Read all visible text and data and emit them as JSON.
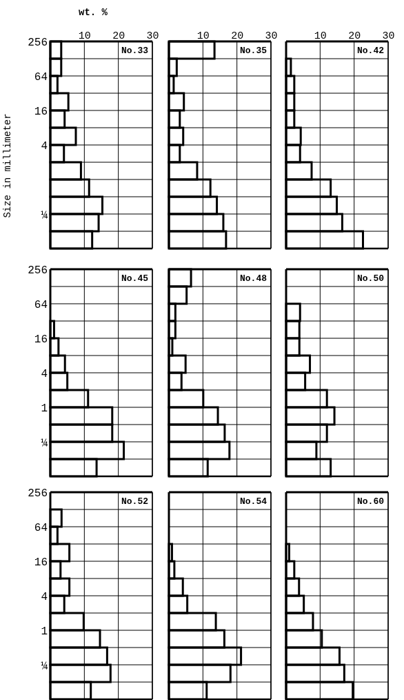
{
  "chart_data": [
    {
      "type": "histogram",
      "title": "No.33",
      "xlabel": "wt. %",
      "ylabel": "Size in millimeter",
      "orientation": "horizontal",
      "log": "y",
      "bins": [
        256,
        128,
        64,
        32,
        16,
        8,
        4,
        2,
        1,
        0.5,
        0.25,
        0.125,
        0.0625
      ],
      "values": [
        3.2,
        3.2,
        2.1,
        5.3,
        4.2,
        7.5,
        4.0,
        9.0,
        11.4,
        15.3,
        14.2,
        12.3
      ],
      "color": "#000000",
      "xlim": [
        0,
        30
      ],
      "xticks": [
        10,
        20,
        30
      ],
      "ylim": [
        0.0625,
        256
      ],
      "yticks": [
        256,
        {
          "value": 128,
          "label": null
        },
        64,
        {
          "value": 32,
          "label": null
        },
        16,
        {
          "value": 8,
          "label": null
        },
        4,
        {
          "value": 2,
          "label": null
        },
        {
          "value": 1,
          "label": null
        },
        {
          "value": 0.5,
          "label": null
        },
        {
          "value": 0.25,
          "label": "¼"
        },
        {
          "value": 0.125,
          "label": null
        }
      ],
      "grid": true
    },
    {
      "type": "histogram",
      "title": "No.35",
      "orientation": "horizontal",
      "log": "y",
      "bins": [
        256,
        128,
        64,
        32,
        16,
        8,
        4,
        2,
        1,
        0.5,
        0.25,
        0.125,
        0.0625
      ],
      "values": [
        13.4,
        2.3,
        1.4,
        4.4,
        3.2,
        4.2,
        3.2,
        8.3,
        12.2,
        14.1,
        16.0,
        16.8
      ],
      "color": "#000000",
      "xlim": [
        0,
        30
      ],
      "xticks": [
        10,
        20,
        30
      ],
      "ylim": [
        0.0625,
        256
      ],
      "yticks": [
        {
          "value": 256,
          "label": null
        },
        {
          "value": 128,
          "label": null
        },
        {
          "value": 64,
          "label": null
        },
        {
          "value": 32,
          "label": null
        },
        {
          "value": 16,
          "label": null
        },
        {
          "value": 8,
          "label": null
        },
        {
          "value": 4,
          "label": null
        },
        {
          "value": 2,
          "label": null
        },
        {
          "value": 1,
          "label": null
        },
        {
          "value": 0.5,
          "label": null
        },
        {
          "value": 0.25,
          "label": null
        },
        {
          "value": 0.125,
          "label": null
        }
      ],
      "grid": true,
      "tick_labels": "x"
    },
    {
      "type": "histogram",
      "title": "No.42",
      "orientation": "horizontal",
      "log": "y",
      "bins": [
        256,
        128,
        64,
        32,
        16,
        8,
        4,
        2,
        1,
        0.5,
        0.25,
        0.125,
        0.0625
      ],
      "values": [
        0,
        1.4,
        2.4,
        2.4,
        2.4,
        4.3,
        4.1,
        7.5,
        13.1,
        14.9,
        16.5,
        22.6
      ],
      "color": "#000000",
      "xlim": [
        0,
        30
      ],
      "xticks": [
        10,
        20,
        30
      ],
      "ylim": [
        0.0625,
        256
      ],
      "yticks": [
        {
          "value": 256,
          "label": null
        },
        {
          "value": 128,
          "label": null
        },
        {
          "value": 64,
          "label": null
        },
        {
          "value": 32,
          "label": null
        },
        {
          "value": 16,
          "label": null
        },
        {
          "value": 8,
          "label": null
        },
        {
          "value": 4,
          "label": null
        },
        {
          "value": 2,
          "label": null
        },
        {
          "value": 1,
          "label": null
        },
        {
          "value": 0.5,
          "label": null
        },
        {
          "value": 0.25,
          "label": null
        },
        {
          "value": 0.125,
          "label": null
        }
      ],
      "grid": true,
      "tick_labels": "x"
    },
    {
      "type": "histogram",
      "title": "No.45",
      "orientation": "horizontal",
      "log": "y",
      "bins": [
        256,
        128,
        64,
        32,
        16,
        8,
        4,
        2,
        1,
        0.5,
        0.25,
        0.125,
        0.0625
      ],
      "values": [
        0,
        0,
        0,
        1.1,
        2.4,
        4.3,
        5.0,
        11.1,
        18.2,
        18.2,
        21.6,
        13.6
      ],
      "color": "#000000",
      "xlim": [
        0,
        30
      ],
      "xticks": [
        {
          "value": 10,
          "label": null
        },
        {
          "value": 20,
          "label": null
        },
        {
          "value": 30,
          "label": null
        }
      ],
      "ylim": [
        0.0625,
        256
      ],
      "yticks": [
        256,
        {
          "value": 128,
          "label": null
        },
        64,
        {
          "value": 32,
          "label": null
        },
        16,
        {
          "value": 8,
          "label": null
        },
        4,
        {
          "value": 2,
          "label": null
        },
        1,
        {
          "value": 0.5,
          "label": null
        },
        {
          "value": 0.25,
          "label": "¼"
        },
        {
          "value": 0.125,
          "label": null
        }
      ],
      "grid": true,
      "tick_labels": "y"
    },
    {
      "type": "histogram",
      "title": "No.48",
      "orientation": "horizontal",
      "log": "y",
      "bins": [
        256,
        128,
        64,
        32,
        16,
        8,
        4,
        2,
        1,
        0.5,
        0.25,
        0.125,
        0.0625
      ],
      "values": [
        6.5,
        5.2,
        1.9,
        1.9,
        1.0,
        4.9,
        3.7,
        10.1,
        14.4,
        16.4,
        17.8,
        11.4
      ],
      "color": "#000000",
      "xlim": [
        0,
        30
      ],
      "xticks": [
        {
          "value": 10,
          "label": null
        },
        {
          "value": 20,
          "label": null
        },
        {
          "value": 30,
          "label": null
        }
      ],
      "ylim": [
        0.0625,
        256
      ],
      "yticks": [
        {
          "value": 256,
          "label": null
        },
        {
          "value": 128,
          "label": null
        },
        {
          "value": 64,
          "label": null
        },
        {
          "value": 32,
          "label": null
        },
        {
          "value": 16,
          "label": null
        },
        {
          "value": 8,
          "label": null
        },
        {
          "value": 4,
          "label": null
        },
        {
          "value": 2,
          "label": null
        },
        {
          "value": 1,
          "label": null
        },
        {
          "value": 0.5,
          "label": null
        },
        {
          "value": 0.25,
          "label": null
        },
        {
          "value": 0.125,
          "label": null
        }
      ],
      "grid": true,
      "tick_labels": false
    },
    {
      "type": "histogram",
      "title": "No.50",
      "orientation": "horizontal",
      "log": "y",
      "bins": [
        256,
        128,
        64,
        32,
        16,
        8,
        4,
        2,
        1,
        0.5,
        0.25,
        0.125,
        0.0625
      ],
      "values": [
        0,
        0,
        4.1,
        3.9,
        3.9,
        7.0,
        5.6,
        12.0,
        14.2,
        12.0,
        8.9,
        13.1
      ],
      "color": "#000000",
      "xlim": [
        0,
        30
      ],
      "xticks": [
        {
          "value": 10,
          "label": null
        },
        {
          "value": 20,
          "label": null
        },
        {
          "value": 30,
          "label": null
        }
      ],
      "ylim": [
        0.0625,
        256
      ],
      "yticks": [
        {
          "value": 256,
          "label": null
        },
        {
          "value": 128,
          "label": null
        },
        {
          "value": 64,
          "label": null
        },
        {
          "value": 32,
          "label": null
        },
        {
          "value": 16,
          "label": null
        },
        {
          "value": 8,
          "label": null
        },
        {
          "value": 4,
          "label": null
        },
        {
          "value": 2,
          "label": null
        },
        {
          "value": 1,
          "label": null
        },
        {
          "value": 0.5,
          "label": null
        },
        {
          "value": 0.25,
          "label": null
        },
        {
          "value": 0.125,
          "label": null
        }
      ],
      "grid": true,
      "tick_labels": false
    },
    {
      "type": "histogram",
      "title": "No.52",
      "orientation": "horizontal",
      "log": "y",
      "bins": [
        256,
        128,
        64,
        32,
        16,
        8,
        4,
        2,
        1,
        0.5,
        0.25,
        0.125,
        0.0625
      ],
      "values": [
        0,
        3.3,
        2.1,
        5.6,
        3.0,
        5.6,
        4.1,
        9.8,
        14.6,
        16.7,
        17.7,
        11.9
      ],
      "color": "#000000",
      "xlim": [
        0,
        30
      ],
      "xticks": [
        {
          "value": 10,
          "label": null
        },
        {
          "value": 20,
          "label": null
        },
        {
          "value": 30,
          "label": null
        }
      ],
      "ylim": [
        0.0625,
        256
      ],
      "yticks": [
        256,
        {
          "value": 128,
          "label": null
        },
        64,
        {
          "value": 32,
          "label": null
        },
        16,
        {
          "value": 8,
          "label": null
        },
        4,
        {
          "value": 2,
          "label": null
        },
        1,
        {
          "value": 0.5,
          "label": null
        },
        {
          "value": 0.25,
          "label": "¼"
        },
        {
          "value": 0.125,
          "label": null
        }
      ],
      "grid": true,
      "tick_labels": "y"
    },
    {
      "type": "histogram",
      "title": "No.54",
      "orientation": "horizontal",
      "log": "y",
      "bins": [
        256,
        128,
        64,
        32,
        16,
        8,
        4,
        2,
        1,
        0.5,
        0.25,
        0.125,
        0.0625
      ],
      "values": [
        0,
        0,
        0,
        0.9,
        1.6,
        4.1,
        5.4,
        13.8,
        16.3,
        21.2,
        18.1,
        11.1
      ],
      "color": "#000000",
      "xlim": [
        0,
        30
      ],
      "xticks": [
        {
          "value": 10,
          "label": null
        },
        {
          "value": 20,
          "label": null
        },
        {
          "value": 30,
          "label": null
        }
      ],
      "ylim": [
        0.0625,
        256
      ],
      "yticks": [
        {
          "value": 256,
          "label": null
        },
        {
          "value": 128,
          "label": null
        },
        {
          "value": 64,
          "label": null
        },
        {
          "value": 32,
          "label": null
        },
        {
          "value": 16,
          "label": null
        },
        {
          "value": 8,
          "label": null
        },
        {
          "value": 4,
          "label": null
        },
        {
          "value": 2,
          "label": null
        },
        {
          "value": 1,
          "label": null
        },
        {
          "value": 0.5,
          "label": null
        },
        {
          "value": 0.25,
          "label": null
        },
        {
          "value": 0.125,
          "label": null
        }
      ],
      "grid": true,
      "tick_labels": false
    },
    {
      "type": "histogram",
      "title": "No.60",
      "orientation": "horizontal",
      "log": "y",
      "bins": [
        256,
        128,
        64,
        32,
        16,
        8,
        4,
        2,
        1,
        0.5,
        0.25,
        0.125,
        0.0625
      ],
      "values": [
        0,
        0,
        0,
        0.9,
        2.4,
        3.8,
        5.2,
        7.9,
        10.5,
        15.7,
        17.1,
        19.6
      ],
      "color": "#000000",
      "xlim": [
        0,
        30
      ],
      "xticks": [
        {
          "value": 10,
          "label": null
        },
        {
          "value": 20,
          "label": null
        },
        {
          "value": 30,
          "label": null
        }
      ],
      "ylim": [
        0.0625,
        256
      ],
      "yticks": [
        {
          "value": 256,
          "label": null
        },
        {
          "value": 128,
          "label": null
        },
        {
          "value": 64,
          "label": null
        },
        {
          "value": 32,
          "label": null
        },
        {
          "value": 16,
          "label": null
        },
        {
          "value": 8,
          "label": null
        },
        {
          "value": 4,
          "label": null
        },
        {
          "value": 2,
          "label": null
        },
        {
          "value": 1,
          "label": null
        },
        {
          "value": 0.5,
          "label": null
        },
        {
          "value": 0.25,
          "label": null
        },
        {
          "value": 0.125,
          "label": null
        }
      ],
      "grid": true,
      "tick_labels": false
    }
  ]
}
